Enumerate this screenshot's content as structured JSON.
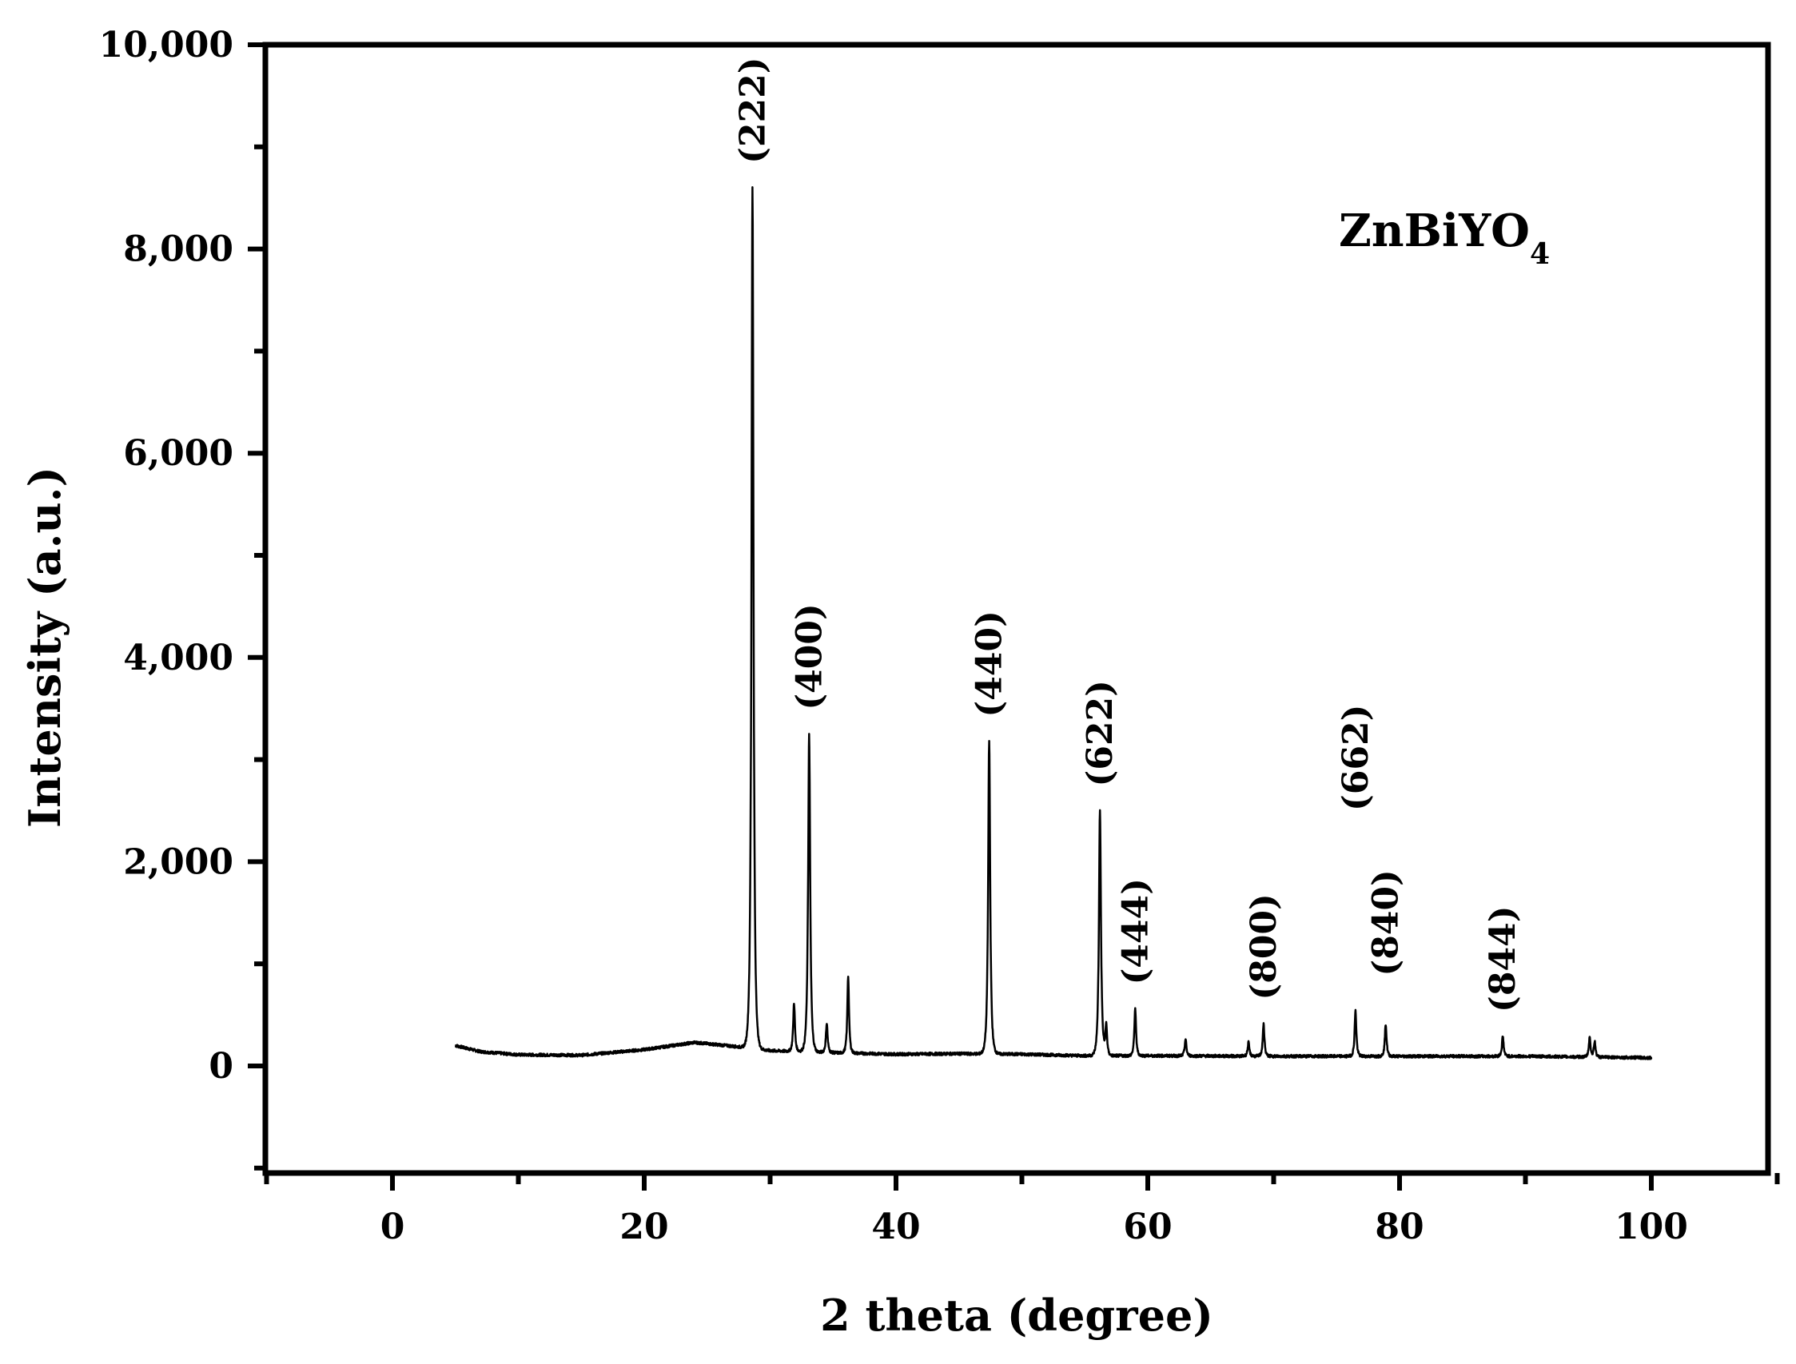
{
  "chart_data": {
    "type": "line",
    "xlabel": "2 theta (degree)",
    "ylabel": "Intensity (a.u.)",
    "xlim": [
      -10,
      110
    ],
    "ylim": [
      -1000,
      10000
    ],
    "xticks": [
      0,
      20,
      40,
      60,
      80,
      100
    ],
    "xtick_labels": [
      "0",
      "20",
      "40",
      "60",
      "80",
      "100"
    ],
    "yticks": [
      0,
      2000,
      4000,
      6000,
      8000,
      10000
    ],
    "ytick_labels": [
      "0",
      "2,000",
      "4,000",
      "6,000",
      "8,000",
      "10,000"
    ],
    "grid": false,
    "line_color": "#000000",
    "annotation": {
      "text": "ZnBiYO",
      "subscript": "4"
    },
    "baseline": [
      [
        5,
        200
      ],
      [
        7,
        140
      ],
      [
        10,
        110
      ],
      [
        15,
        105
      ],
      [
        20,
        160
      ],
      [
        24,
        230
      ],
      [
        26.5,
        200
      ],
      [
        28,
        180
      ],
      [
        30,
        150
      ],
      [
        35,
        130
      ],
      [
        40,
        115
      ],
      [
        45,
        120
      ],
      [
        50,
        115
      ],
      [
        55,
        100
      ],
      [
        60,
        100
      ],
      [
        70,
        95
      ],
      [
        80,
        95
      ],
      [
        90,
        95
      ],
      [
        100,
        80
      ]
    ],
    "peaks": [
      {
        "x": 28.6,
        "y": 8600,
        "hkl": "(222)"
      },
      {
        "x": 31.9,
        "y": 620,
        "hkl": ""
      },
      {
        "x": 33.1,
        "y": 3250,
        "hkl": "(400)"
      },
      {
        "x": 34.5,
        "y": 420,
        "hkl": ""
      },
      {
        "x": 36.2,
        "y": 880,
        "hkl": ""
      },
      {
        "x": 47.4,
        "y": 3180,
        "hkl": "(440)"
      },
      {
        "x": 56.2,
        "y": 2500,
        "hkl": "(622)"
      },
      {
        "x": 56.7,
        "y": 400,
        "hkl": ""
      },
      {
        "x": 59.0,
        "y": 560,
        "hkl": "(444)"
      },
      {
        "x": 63.0,
        "y": 260,
        "hkl": ""
      },
      {
        "x": 68.0,
        "y": 230,
        "hkl": ""
      },
      {
        "x": 69.2,
        "y": 410,
        "hkl": "(800)"
      },
      {
        "x": 76.5,
        "y": 540,
        "hkl": "(662)"
      },
      {
        "x": 78.9,
        "y": 410,
        "hkl": "(840)"
      },
      {
        "x": 88.2,
        "y": 290,
        "hkl": "(844)"
      },
      {
        "x": 95.1,
        "y": 280,
        "hkl": ""
      },
      {
        "x": 95.5,
        "y": 240,
        "hkl": ""
      }
    ]
  }
}
